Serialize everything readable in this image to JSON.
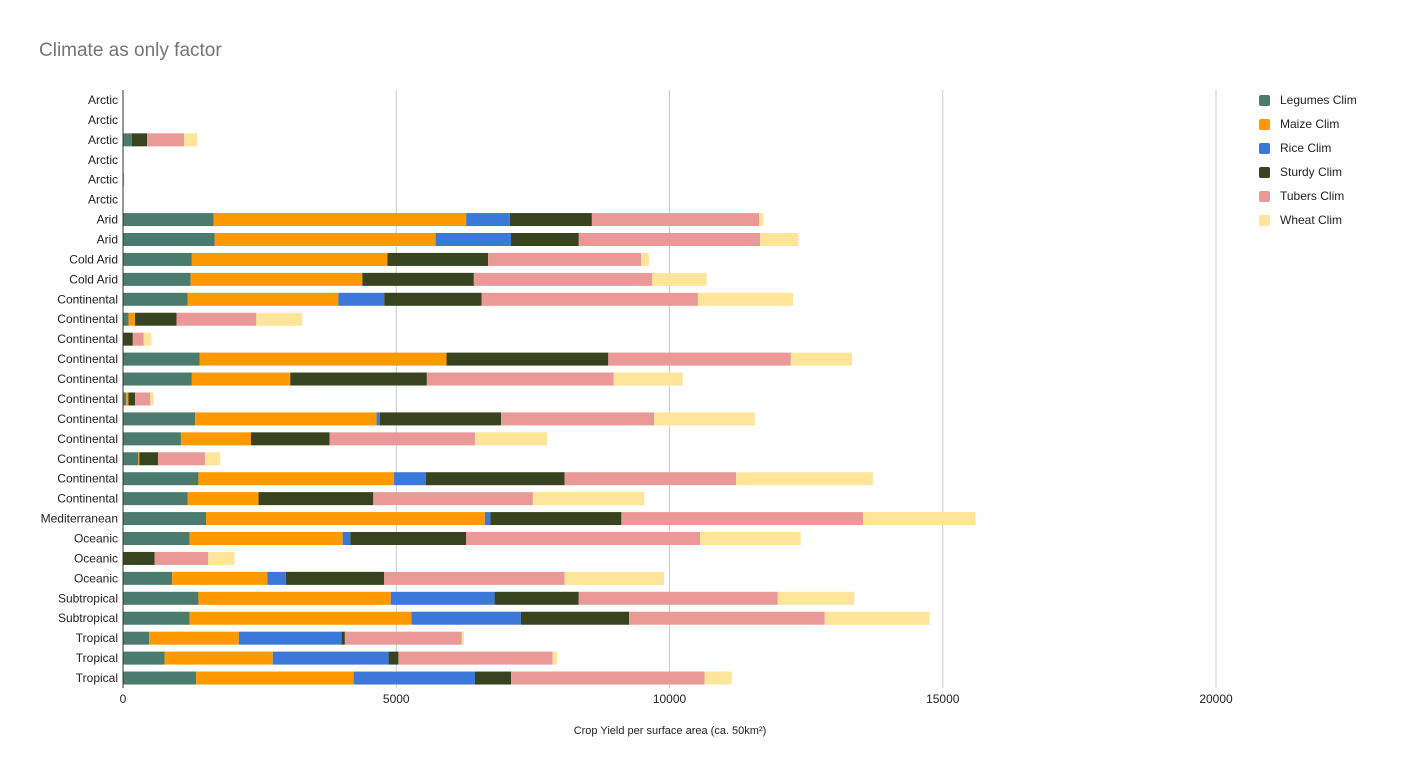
{
  "chart_data": {
    "type": "bar",
    "orientation": "horizontal",
    "stacked": true,
    "title": "Climate as only factor",
    "xlabel": "Crop Yield  per surface area (ca. 50km²)",
    "ylabel": "",
    "xlim": [
      0,
      22000
    ],
    "xticks": [
      0,
      5000,
      10000,
      15000,
      20000
    ],
    "grid": true,
    "legend_position": "right",
    "categories": [
      "Arctic",
      "Arctic",
      "Arctic",
      "Arctic",
      "Arctic",
      "Arctic",
      "Arid",
      "Arid",
      "Cold Arid",
      "Cold Arid",
      "Continental",
      "Continental",
      "Continental",
      "Continental",
      "Continental",
      "Continental",
      "Continental",
      "Continental",
      "Continental",
      "Continental",
      "Continental",
      "Mediterranean",
      "Oceanic",
      "Oceanic",
      "Oceanic",
      "Subtropical",
      "Subtropical",
      "Tropical",
      "Tropical",
      "Tropical"
    ],
    "series": [
      {
        "name": "Legumes Clim",
        "color": "#4b7b6c",
        "values": [
          0,
          0,
          160,
          0,
          0,
          0,
          1660,
          1680,
          1260,
          1240,
          1180,
          100,
          0,
          1400,
          1260,
          60,
          1320,
          1060,
          280,
          1380,
          1180,
          1520,
          1220,
          0,
          900,
          1380,
          1220,
          480,
          760,
          1340
        ]
      },
      {
        "name": "Maize Clim",
        "color": "#ff9900",
        "values": [
          0,
          0,
          0,
          0,
          0,
          0,
          4620,
          4040,
          3580,
          3140,
          2760,
          120,
          0,
          4520,
          1800,
          40,
          3320,
          1280,
          20,
          3580,
          1300,
          5100,
          2800,
          0,
          1740,
          3520,
          4060,
          1640,
          1980,
          2880
        ]
      },
      {
        "name": "Rice Clim",
        "color": "#3c78d8",
        "values": [
          0,
          0,
          0,
          0,
          0,
          0,
          800,
          1380,
          0,
          0,
          840,
          0,
          0,
          0,
          0,
          0,
          60,
          0,
          0,
          580,
          0,
          100,
          140,
          0,
          340,
          1900,
          2000,
          1880,
          2120,
          2220
        ]
      },
      {
        "name": "Sturdy Clim",
        "color": "#38441f",
        "values": [
          0,
          0,
          280,
          0,
          0,
          0,
          1500,
          1240,
          1840,
          2040,
          1780,
          760,
          180,
          2960,
          2500,
          120,
          2220,
          1440,
          340,
          2540,
          2100,
          2400,
          2120,
          580,
          1800,
          1540,
          1980,
          60,
          180,
          660
        ]
      },
      {
        "name": "Tubers Clim",
        "color": "#ea9999",
        "values": [
          0,
          0,
          680,
          0,
          20,
          0,
          3060,
          3320,
          2800,
          3260,
          3960,
          1460,
          200,
          3340,
          3420,
          280,
          2800,
          2660,
          860,
          3140,
          2920,
          4420,
          4280,
          980,
          3300,
          3640,
          3580,
          2140,
          2820,
          3540
        ]
      },
      {
        "name": "Wheat Clim",
        "color": "#ffe599",
        "values": [
          0,
          0,
          240,
          0,
          0,
          0,
          80,
          700,
          140,
          1000,
          1740,
          840,
          140,
          1120,
          1260,
          60,
          1840,
          1320,
          280,
          2500,
          2040,
          2060,
          1840,
          480,
          1820,
          1400,
          1920,
          40,
          80,
          500
        ]
      }
    ]
  }
}
